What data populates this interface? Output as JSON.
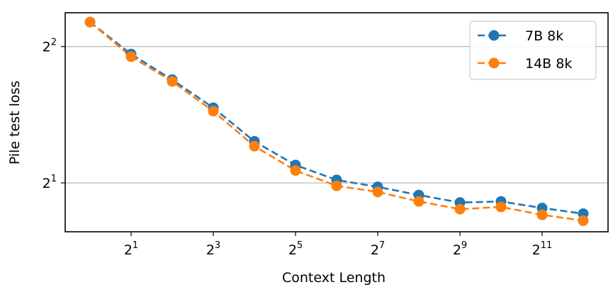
{
  "chart_data": {
    "type": "line",
    "xlabel": "Context Length",
    "ylabel": "Pile test loss",
    "xscale": "log2",
    "yscale": "log2",
    "xlim": [
      1,
      4096
    ],
    "ylim": [
      1.56,
      4.75
    ],
    "grid": "y-major",
    "legend_position": "top-right",
    "x_ticks": [
      {
        "value": 2,
        "base": "2",
        "exp": "1"
      },
      {
        "value": 8,
        "base": "2",
        "exp": "3"
      },
      {
        "value": 32,
        "base": "2",
        "exp": "5"
      },
      {
        "value": 128,
        "base": "2",
        "exp": "7"
      },
      {
        "value": 512,
        "base": "2",
        "exp": "9"
      },
      {
        "value": 2048,
        "base": "2",
        "exp": "11"
      }
    ],
    "y_ticks": [
      {
        "value": 2,
        "base": "2",
        "exp": "1"
      },
      {
        "value": 4,
        "base": "2",
        "exp": "2"
      }
    ],
    "x": [
      1,
      2,
      4,
      8,
      16,
      32,
      64,
      128,
      256,
      512,
      1024,
      2048,
      4096
    ],
    "series": [
      {
        "name": "7B 8k",
        "color": "#1f77b4",
        "values": [
          4.53,
          3.85,
          3.38,
          2.93,
          2.47,
          2.19,
          2.03,
          1.96,
          1.88,
          1.81,
          1.82,
          1.76,
          1.71
        ]
      },
      {
        "name": "14B 8k",
        "color": "#ff7f0e",
        "values": [
          4.53,
          3.8,
          3.35,
          2.88,
          2.41,
          2.13,
          1.97,
          1.91,
          1.82,
          1.75,
          1.77,
          1.7,
          1.65
        ]
      }
    ]
  }
}
